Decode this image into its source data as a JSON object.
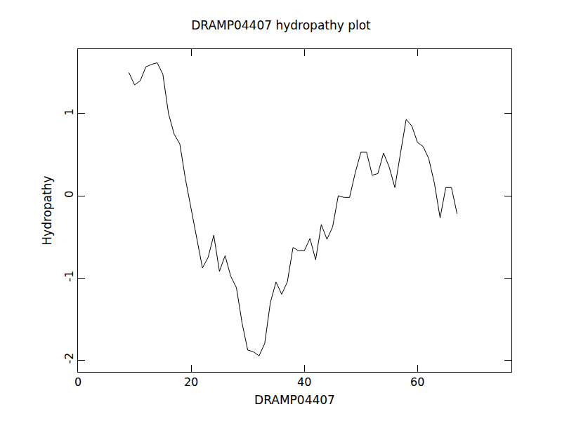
{
  "chart_data": {
    "type": "line",
    "title": "DRAMP04407 hydropathy plot",
    "x_label": "DRAMP04407",
    "y_label": "Hydropathy",
    "x": [
      9,
      10,
      11,
      12,
      13,
      14,
      15,
      16,
      17,
      18,
      19,
      20,
      21,
      22,
      23,
      24,
      25,
      26,
      27,
      28,
      29,
      30,
      31,
      32,
      33,
      34,
      35,
      36,
      37,
      38,
      39,
      40,
      41,
      42,
      43,
      44,
      45,
      46,
      47,
      48,
      49,
      50,
      51,
      52,
      53,
      54,
      55,
      56,
      57,
      58,
      59,
      60,
      61,
      62,
      63,
      64,
      65,
      66,
      67
    ],
    "values": [
      1.5,
      1.35,
      1.4,
      1.57,
      1.6,
      1.62,
      1.48,
      1.0,
      0.75,
      0.63,
      0.2,
      -0.15,
      -0.5,
      -0.88,
      -0.75,
      -0.48,
      -0.92,
      -0.73,
      -0.98,
      -1.12,
      -1.55,
      -1.88,
      -1.9,
      -1.95,
      -1.8,
      -1.3,
      -1.05,
      -1.2,
      -1.05,
      -0.63,
      -0.67,
      -0.67,
      -0.52,
      -0.78,
      -0.35,
      -0.53,
      -0.38,
      0.0,
      -0.02,
      -0.02,
      0.28,
      0.53,
      0.53,
      0.25,
      0.27,
      0.52,
      0.35,
      0.1,
      0.52,
      0.93,
      0.85,
      0.65,
      0.6,
      0.45,
      0.15,
      -0.27,
      0.1,
      0.1,
      -0.22
    ],
    "color": "#000000",
    "xlim": [
      0,
      76.6
    ],
    "xticks": [
      0,
      20,
      40,
      60
    ],
    "ylim": [
      -2.145,
      1.786
    ],
    "yticks": [
      -2,
      -1,
      0,
      1
    ],
    "grid": false
  }
}
